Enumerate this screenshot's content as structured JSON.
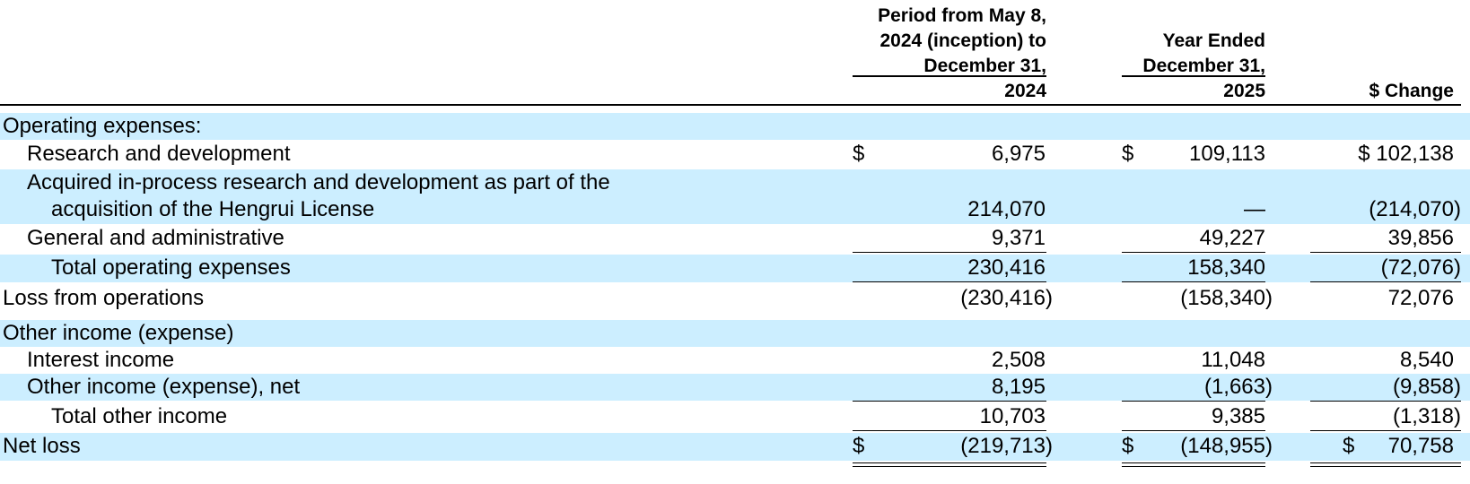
{
  "header": {
    "col1_lines": [
      "Period from May 8,",
      "2024 (inception) to",
      "December 31,",
      "2024"
    ],
    "col2_lines": [
      "Year Ended",
      "December 31,",
      "2025"
    ],
    "col3_label": "$ Change"
  },
  "rows": {
    "opex_heading": {
      "label": "Operating expenses:"
    },
    "rnd": {
      "label": "Research and development",
      "cur1": "$",
      "v1": "6,975",
      "cur2": "$",
      "v2": "109,113",
      "v3": "$ 102,138"
    },
    "ipr_d": {
      "label_line1": "Acquired in-process research and development as part of the",
      "label_line2": "acquisition of the Hengrui License",
      "v1": "214,070",
      "v2": "—",
      "v3": "(214,070)"
    },
    "gna": {
      "label": "General and administrative",
      "v1": "9,371",
      "v2": "49,227",
      "v3": "39,856"
    },
    "total_opex": {
      "label": "Total operating expenses",
      "v1": "230,416",
      "v2": "158,340",
      "v3": "(72,076)"
    },
    "loss_ops": {
      "label": "Loss from operations",
      "v1": "(230,416)",
      "v2": "(158,340)",
      "v3": "72,076"
    },
    "other_heading": {
      "label": "Other income (expense)"
    },
    "interest": {
      "label": "Interest income",
      "v1": "2,508",
      "v2": "11,048",
      "v3": "8,540"
    },
    "other_net": {
      "label": "Other income (expense), net",
      "v1": "8,195",
      "v2": "(1,663)",
      "v3": "(9,858)"
    },
    "total_other": {
      "label": "Total other income",
      "v1": "10,703",
      "v2": "9,385",
      "v3": "(1,318)"
    },
    "net_loss": {
      "label": "Net loss",
      "cur1": "$",
      "v1": "(219,713)",
      "cur2": "$",
      "v2": "(148,955)",
      "cur3": "$",
      "v3": "70,758"
    }
  }
}
